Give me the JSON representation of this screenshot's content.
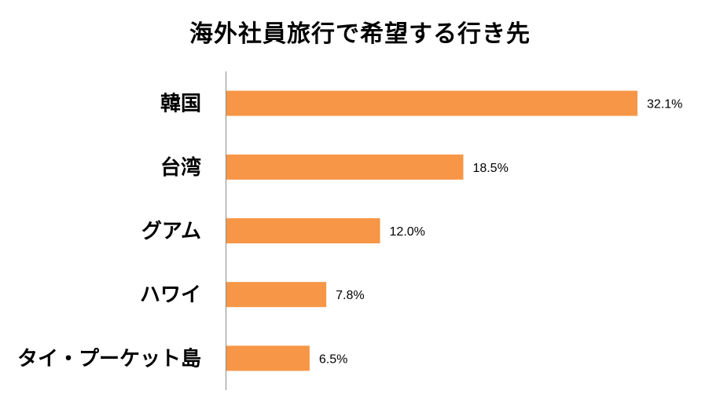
{
  "chart_data": {
    "type": "bar",
    "orientation": "horizontal",
    "title": "海外社員旅行で希望する行き先",
    "categories": [
      "韓国",
      "台湾",
      "グアム",
      "ハワイ",
      "タイ・プーケット島"
    ],
    "values": [
      32.1,
      18.5,
      12.0,
      7.8,
      6.5
    ],
    "value_labels": [
      "32.1%",
      "18.5%",
      "12.0%",
      "7.8%",
      "6.5%"
    ],
    "unit": "%",
    "xlim": [
      0,
      34
    ],
    "grid": false,
    "legend": "none",
    "bar_color": "#F79646"
  }
}
